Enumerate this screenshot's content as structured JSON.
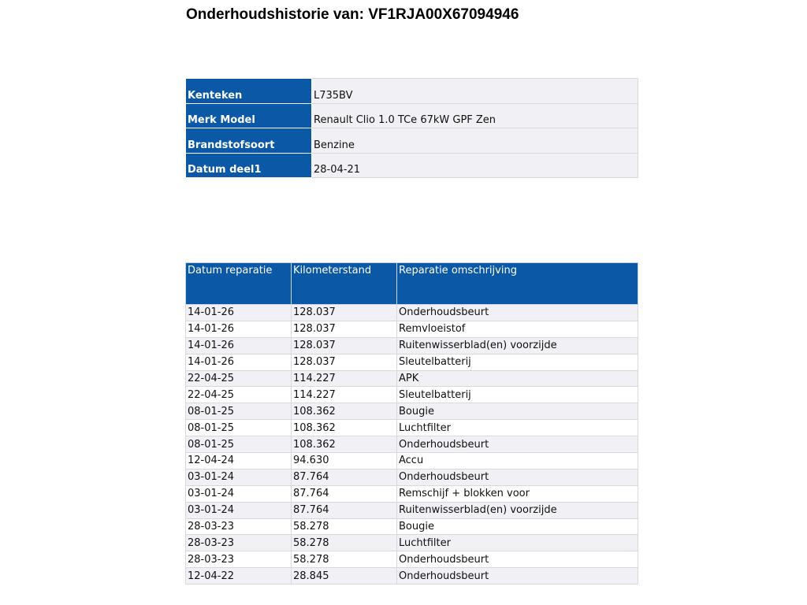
{
  "title": "Onderhoudshistorie van: VF1RJA00X67094946",
  "vehicle": [
    {
      "label": "Kenteken",
      "value": "L735BV"
    },
    {
      "label": "Merk Model",
      "value": "Renault Clio 1.0 TCe 67kW GPF Zen"
    },
    {
      "label": "Brandstofsoort",
      "value": "Benzine"
    },
    {
      "label": "Datum deel1",
      "value": "28-04-21"
    }
  ],
  "history": {
    "headers": [
      "Datum reparatie",
      "Kilometerstand",
      "Reparatie omschrijving"
    ],
    "rows": [
      [
        "14-01-26",
        "128.037",
        "Onderhoudsbeurt"
      ],
      [
        "14-01-26",
        "128.037",
        "Remvloeistof"
      ],
      [
        "14-01-26",
        "128.037",
        "Ruitenwisserblad(en) voorzijde"
      ],
      [
        "14-01-26",
        "128.037",
        "Sleutelbatterij"
      ],
      [
        "22-04-25",
        "114.227",
        "APK"
      ],
      [
        "22-04-25",
        "114.227",
        "Sleutelbatterij"
      ],
      [
        "08-01-25",
        "108.362",
        "Bougie"
      ],
      [
        "08-01-25",
        "108.362",
        "Luchtfilter"
      ],
      [
        "08-01-25",
        "108.362",
        "Onderhoudsbeurt"
      ],
      [
        "12-04-24",
        "94.630",
        "Accu"
      ],
      [
        "03-01-24",
        "87.764",
        "Onderhoudsbeurt"
      ],
      [
        "03-01-24",
        "87.764",
        "Remschijf + blokken voor"
      ],
      [
        "03-01-24",
        "87.764",
        "Ruitenwisserblad(en) voorzijde"
      ],
      [
        "28-03-23",
        "58.278",
        "Bougie"
      ],
      [
        "28-03-23",
        "58.278",
        "Luchtfilter"
      ],
      [
        "28-03-23",
        "58.278",
        "Onderhoudsbeurt"
      ],
      [
        "12-04-22",
        "28.845",
        "Onderhoudsbeurt"
      ]
    ]
  },
  "colors": {
    "header_bg": "#0b58a6",
    "row_alt": "#f0f0f5"
  }
}
